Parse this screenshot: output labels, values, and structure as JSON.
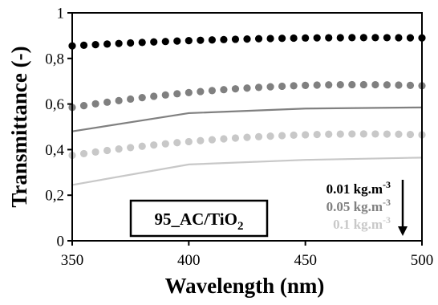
{
  "chart_data": {
    "type": "scatter",
    "xlabel": "Wavelength (nm)",
    "ylabel": "Transmittance (-)",
    "xlim": [
      350,
      500
    ],
    "ylim": [
      0,
      1
    ],
    "x_ticks": [
      350,
      400,
      450,
      500
    ],
    "x_tick_labels": [
      "350",
      "400",
      "450",
      "500"
    ],
    "y_ticks": [
      0,
      0.2,
      0.4,
      0.6,
      0.8,
      1
    ],
    "y_tick_labels": [
      "0",
      "0,2",
      "0,4",
      "0,6",
      "0,8",
      "1"
    ],
    "grid": false,
    "legend": {
      "placement": "bottom-right",
      "entries": [
        {
          "label": "0.01 kg.m",
          "sup": "-3",
          "color": "#000000"
        },
        {
          "label": "0.05 kg.m",
          "sup": "-3",
          "color": "#808080"
        },
        {
          "label": "0.1 kg.m",
          "sup": "-3",
          "color": "#c8c8c8"
        }
      ],
      "arrow": "down"
    },
    "annotation": {
      "text": "95_AC/TiO",
      "sub": "2"
    },
    "series": [
      {
        "kind": "markers",
        "color": "#000000",
        "x_start": 350,
        "x_end": 500,
        "count": 31,
        "y_start": 0.855,
        "y_mid": 0.878,
        "y_end": 0.89
      },
      {
        "kind": "markers",
        "color": "#808080",
        "x_start": 350,
        "x_end": 500,
        "count": 31,
        "y_start": 0.585,
        "y_mid": 0.65,
        "y_end": 0.68
      },
      {
        "kind": "line",
        "color": "#808080",
        "x": [
          350,
          400,
          450,
          500
        ],
        "y": [
          0.48,
          0.56,
          0.58,
          0.585
        ]
      },
      {
        "kind": "markers",
        "color": "#c8c8c8",
        "x_start": 350,
        "x_end": 500,
        "count": 31,
        "y_start": 0.375,
        "y_mid": 0.435,
        "y_end": 0.465
      },
      {
        "kind": "line",
        "color": "#c8c8c8",
        "x": [
          350,
          400,
          450,
          500
        ],
        "y": [
          0.245,
          0.335,
          0.355,
          0.365
        ]
      }
    ]
  }
}
